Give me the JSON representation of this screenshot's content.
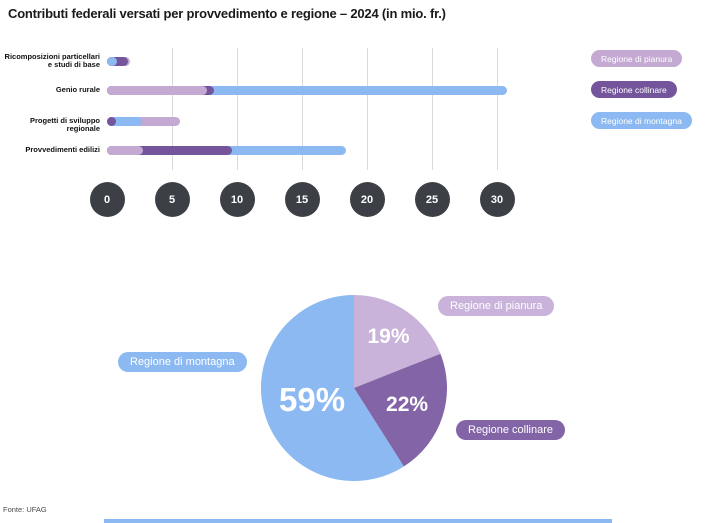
{
  "title": "Contributi federali versati per provvedimento e regione – 2024 (in mio. fr.)",
  "source": "Fonte: UFAG",
  "colors": {
    "pianura": "#c4a9d3",
    "collinare": "#74559c",
    "montagna": "#8cb9f1",
    "pie_pianura": "#c9b3da",
    "pie_collinare": "#8364a6",
    "pie_montagna": "#8cb9f1",
    "axis_circle": "#3c4046",
    "gridline": "#d9d9d9",
    "scrollbar": "#8cb9f1"
  },
  "legend": [
    {
      "label": "Regione di pianura",
      "color": "#c4a9d3"
    },
    {
      "label": "Regione collinare",
      "color": "#74559c"
    },
    {
      "label": "Regione di montagna",
      "color": "#8cb9f1"
    }
  ],
  "chart_data": [
    {
      "type": "bar",
      "orientation": "horizontal",
      "title": "Contributi federali versati per provvedimento e regione – 2024 (in mio. fr.)",
      "note": "overlapping bars from zero baseline; shorter bars drawn in front",
      "categories": [
        "Ricomposizioni particellari\ne studi di base",
        "Genio rurale",
        "Progetti di sviluppo regionale",
        "Provvedimenti edilizi"
      ],
      "series": [
        {
          "name": "Regione di pianura",
          "color": "#c4a9d3",
          "values": [
            1.8,
            7.7,
            5.6,
            2.8
          ]
        },
        {
          "name": "Regione collinare",
          "color": "#74559c",
          "values": [
            1.6,
            8.2,
            0.4,
            9.6
          ]
        },
        {
          "name": "Regione di montagna",
          "color": "#8cb9f1",
          "values": [
            0.8,
            30.8,
            2.7,
            18.4
          ]
        }
      ],
      "x_ticks": [
        "0",
        "5",
        "10",
        "15",
        "20",
        "25",
        "30"
      ],
      "xlim": [
        0,
        31
      ],
      "unit": "mio. fr.",
      "legend_position": "right",
      "grid": "vertical"
    },
    {
      "type": "pie",
      "start": "top, clockwise",
      "slices": [
        {
          "label": "Regione di pianura",
          "percent": 19,
          "value_label": "19%",
          "color": "#c9b3da"
        },
        {
          "label": "Regione collinare",
          "percent": 22,
          "value_label": "22%",
          "color": "#8364a6"
        },
        {
          "label": "Regione di montagna",
          "percent": 59,
          "value_label": "59%",
          "color": "#8cb9f1"
        }
      ]
    }
  ]
}
